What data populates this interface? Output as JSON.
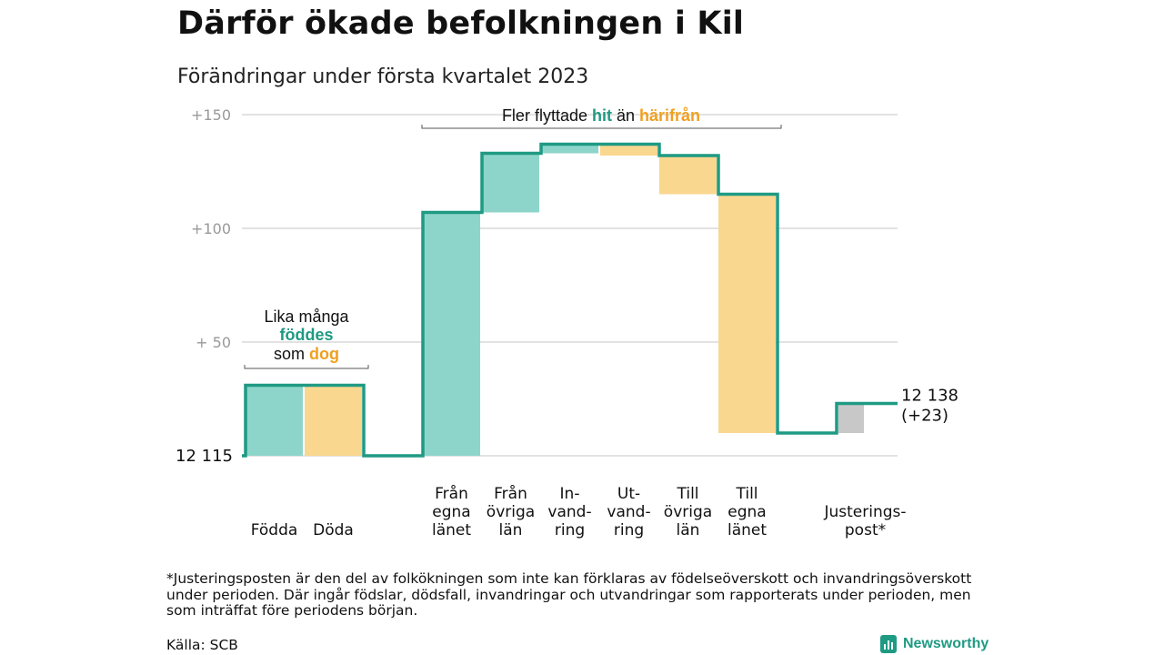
{
  "title": "Därför ökade befolkningen i Kil",
  "subtitle": "Förändringar under första kvartalet 2023",
  "chart_data": {
    "type": "waterfall",
    "start_value": 12115,
    "start_label": "12 115",
    "end_label_line1": "12 138",
    "end_label_line2": "(+23)",
    "yticks": [
      {
        "value": 150,
        "label": "+150"
      },
      {
        "value": 100,
        "label": "+100"
      },
      {
        "value": 50,
        "label": "+ 50"
      },
      {
        "value": 0,
        "label": ""
      }
    ],
    "ylim": [
      0,
      150
    ],
    "steps": [
      {
        "label": [
          "",
          "",
          "Födda"
        ],
        "change": 31,
        "kind": "in"
      },
      {
        "label": [
          "",
          "",
          "Döda"
        ],
        "change": -31,
        "kind": "out"
      },
      {
        "label": [],
        "change": 0,
        "kind": "gap"
      },
      {
        "label": [
          "Från",
          "egna",
          "länet"
        ],
        "change": 107,
        "kind": "in"
      },
      {
        "label": [
          "Från",
          "övriga",
          "län"
        ],
        "change": 26,
        "kind": "in"
      },
      {
        "label": [
          "In-",
          "vand-",
          "ring"
        ],
        "change": 4,
        "kind": "in"
      },
      {
        "label": [
          "Ut-",
          "vand-",
          "ring"
        ],
        "change": -5,
        "kind": "out"
      },
      {
        "label": [
          "Till",
          "övriga",
          "län"
        ],
        "change": -17,
        "kind": "out"
      },
      {
        "label": [
          "Till",
          "egna",
          "länet"
        ],
        "change": -105,
        "kind": "out"
      },
      {
        "label": [],
        "change": 0,
        "kind": "gap"
      },
      {
        "label": [
          "",
          "Justerings-",
          "post*"
        ],
        "change": 13,
        "kind": "adjust"
      }
    ],
    "annotations": {
      "births": {
        "line1": "Lika många",
        "word_in": "föddes",
        "line3_prefix": "som ",
        "word_out": "dog"
      },
      "migration": {
        "prefix": "Fler flyttade ",
        "word_in": "hit",
        "middle": " än ",
        "word_out": "härifrån"
      }
    },
    "colors": {
      "in": "#8dd5ca",
      "out": "#fad78e",
      "adjust": "#c8c8c8",
      "line": "#1f9a83",
      "word_in": "#1f9a83",
      "word_out": "#f0a020",
      "grid": "#d9d9d9",
      "tick": "#999999"
    }
  },
  "footnote": "*Justeringsposten är den del av folkökningen som inte kan förklaras av födelseöverskott och invandringsöverskott under perioden. Där ingår födslar, dödsfall, invandringar och utvandringar som rapporterats under perioden, men som inträffat före periodens början.",
  "source": "Källa: SCB",
  "brand": "Newsworthy"
}
